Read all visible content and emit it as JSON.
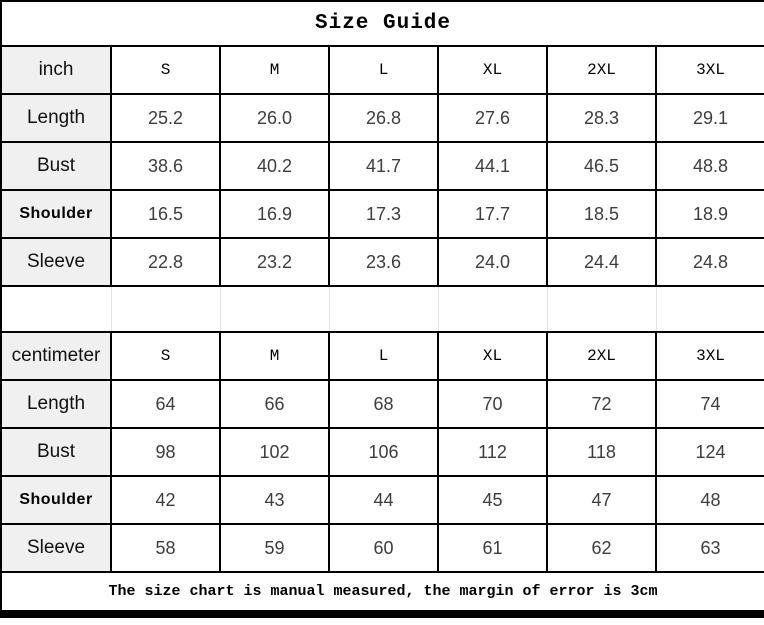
{
  "title": "Size Guide",
  "footer_note": "The size chart is manual measured, the margin of error is 3cm",
  "colors": {
    "border": "#000000",
    "label_column_bg": "#f0f0f0",
    "spacer_divider": "#e3e3e3",
    "number_text": "#3d3d3d",
    "title_text": "#000000"
  },
  "chart_data": [
    {
      "type": "table",
      "unit_label": "inch",
      "columns": [
        "S",
        "M",
        "L",
        "XL",
        "2XL",
        "3XL"
      ],
      "rows": [
        {
          "label": "Length",
          "values": [
            "25.2",
            "26.0",
            "26.8",
            "27.6",
            "28.3",
            "29.1"
          ]
        },
        {
          "label": "Bust",
          "values": [
            "38.6",
            "40.2",
            "41.7",
            "44.1",
            "46.5",
            "48.8"
          ]
        },
        {
          "label": "Shoulder",
          "values": [
            "16.5",
            "16.9",
            "17.3",
            "17.7",
            "18.5",
            "18.9"
          ]
        },
        {
          "label": "Sleeve",
          "values": [
            "22.8",
            "23.2",
            "23.6",
            "24.0",
            "24.4",
            "24.8"
          ]
        }
      ]
    },
    {
      "type": "table",
      "unit_label": "centimeter",
      "columns": [
        "S",
        "M",
        "L",
        "XL",
        "2XL",
        "3XL"
      ],
      "rows": [
        {
          "label": "Length",
          "values": [
            "64",
            "66",
            "68",
            "70",
            "72",
            "74"
          ]
        },
        {
          "label": "Bust",
          "values": [
            "98",
            "102",
            "106",
            "112",
            "118",
            "124"
          ]
        },
        {
          "label": "Shoulder",
          "values": [
            "42",
            "43",
            "44",
            "45",
            "47",
            "48"
          ]
        },
        {
          "label": "Sleeve",
          "values": [
            "58",
            "59",
            "60",
            "61",
            "62",
            "63"
          ]
        }
      ]
    }
  ]
}
